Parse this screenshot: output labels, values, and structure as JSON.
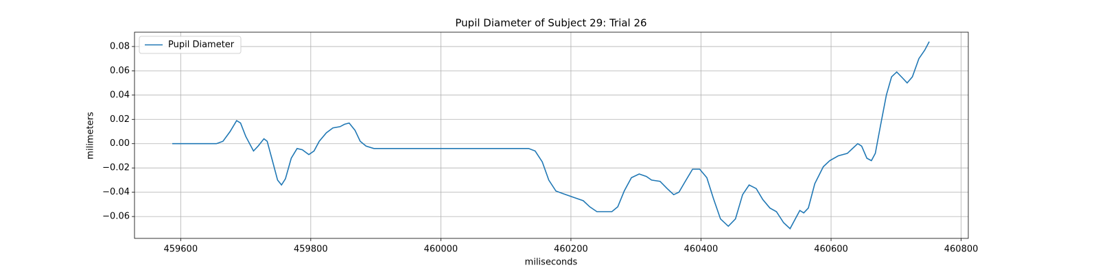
{
  "chart_data": {
    "type": "line",
    "title": "Pupil Diameter of Subject 29: Trial 26",
    "x_label": "miliseconds",
    "y_label": "milimeters",
    "x": [
      459587,
      459655,
      459665,
      459676,
      459686,
      459692,
      459700,
      459712,
      459719,
      459728,
      459733,
      459740,
      459749,
      459755,
      459761,
      459770,
      459779,
      459787,
      459797,
      459805,
      459813,
      459824,
      459834,
      459845,
      459852,
      459859,
      459868,
      459876,
      459885,
      459897,
      460135,
      460145,
      460156,
      460166,
      460177,
      460187,
      460203,
      460219,
      460229,
      460240,
      460250,
      460263,
      460272,
      460282,
      460293,
      460305,
      460316,
      460324,
      460337,
      460348,
      460358,
      460366,
      460377,
      460387,
      460398,
      460409,
      460419,
      460430,
      460442,
      460453,
      460464,
      460474,
      460485,
      460495,
      460506,
      460516,
      460527,
      460537,
      460546,
      460552,
      460558,
      460565,
      460575,
      460588,
      460598,
      460611,
      460625,
      460635,
      460641,
      460647,
      460655,
      460662,
      460668,
      460676,
      460685,
      460693,
      460701,
      460710,
      460717,
      460725,
      460735,
      460744,
      460751
    ],
    "series": [
      {
        "name": "Pupil Diameter",
        "color": "#1f77b4",
        "values": [
          0.0,
          0.0,
          0.002,
          0.01,
          0.019,
          0.017,
          0.006,
          -0.006,
          -0.002,
          0.004,
          0.002,
          -0.012,
          -0.03,
          -0.034,
          -0.029,
          -0.012,
          -0.004,
          -0.005,
          -0.009,
          -0.006,
          0.002,
          0.009,
          0.013,
          0.014,
          0.016,
          0.017,
          0.011,
          0.002,
          -0.002,
          -0.004,
          -0.004,
          -0.006,
          -0.015,
          -0.03,
          -0.039,
          -0.041,
          -0.044,
          -0.047,
          -0.052,
          -0.056,
          -0.056,
          -0.056,
          -0.052,
          -0.039,
          -0.028,
          -0.025,
          -0.027,
          -0.03,
          -0.031,
          -0.037,
          -0.042,
          -0.04,
          -0.03,
          -0.021,
          -0.021,
          -0.028,
          -0.045,
          -0.062,
          -0.068,
          -0.062,
          -0.042,
          -0.034,
          -0.037,
          -0.046,
          -0.053,
          -0.056,
          -0.065,
          -0.07,
          -0.061,
          -0.055,
          -0.057,
          -0.053,
          -0.033,
          -0.019,
          -0.014,
          -0.01,
          -0.008,
          -0.003,
          0.0,
          -0.002,
          -0.012,
          -0.014,
          -0.008,
          0.015,
          0.04,
          0.055,
          0.059,
          0.054,
          0.05,
          0.055,
          0.07,
          0.077,
          0.084
        ]
      }
    ],
    "xlim": [
      459529,
      460811
    ],
    "xticks": [
      459600,
      459800,
      460000,
      460200,
      460400,
      460600,
      460800
    ],
    "ylim": [
      -0.078,
      0.0918
    ],
    "yticks": [
      {
        "value": -0.06,
        "label": "−0.06"
      },
      {
        "value": -0.04,
        "label": "−0.04"
      },
      {
        "value": -0.02,
        "label": "−0.02"
      },
      {
        "value": 0,
        "label": "0.00"
      },
      0.02,
      0.04,
      0.06,
      0.08
    ],
    "grid": true,
    "legend": "upper left"
  }
}
